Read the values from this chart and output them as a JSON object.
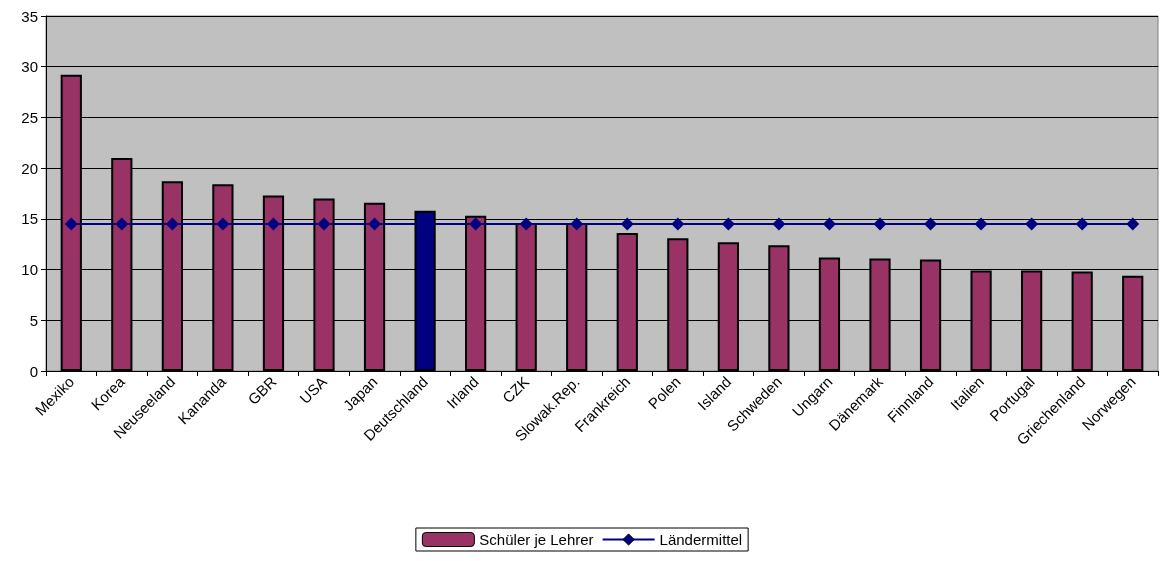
{
  "chart_data": {
    "type": "bar",
    "categories": [
      "Mexiko",
      "Korea",
      "Neuseeland",
      "Kananda",
      "GBR",
      "USA",
      "Japan",
      "Deutschland",
      "Irland",
      "CZK",
      "Slowak.Rep.",
      "Frankreich",
      "Polen",
      "Island",
      "Schweden",
      "Ungarn",
      "Dänemark",
      "Finnland",
      "Italien",
      "Portugal",
      "Griechenland",
      "Norwegen"
    ],
    "series": [
      {
        "name": "Schüler je Lehrer",
        "color": "#993366",
        "colors": [
          "#993366",
          "#993366",
          "#993366",
          "#993366",
          "#993366",
          "#993366",
          "#993366",
          "#000080",
          "#993366",
          "#993366",
          "#993366",
          "#993366",
          "#993366",
          "#993366",
          "#993366",
          "#993366",
          "#993366",
          "#993366",
          "#993366",
          "#993366",
          "#993366",
          "#993366"
        ],
        "values": [
          29.2,
          21.0,
          18.7,
          18.4,
          17.3,
          17.0,
          16.6,
          15.8,
          15.3,
          14.6,
          14.6,
          13.6,
          13.1,
          12.7,
          12.4,
          11.2,
          11.1,
          11.0,
          9.9,
          9.9,
          9.8,
          9.4
        ]
      },
      {
        "name": "Ländermittel",
        "type": "line",
        "color": "#000080",
        "marker": "diamond",
        "values": [
          14.5,
          14.5,
          14.5,
          14.5,
          14.5,
          14.5,
          14.5,
          14.5,
          14.5,
          14.5,
          14.5,
          14.5,
          14.5,
          14.5,
          14.5,
          14.5,
          14.5,
          14.5,
          14.5,
          14.5,
          14.5,
          14.5
        ]
      }
    ],
    "ylim": [
      0,
      35
    ],
    "yticks": [
      0,
      5,
      10,
      15,
      20,
      25,
      30,
      35
    ],
    "grid": "y",
    "legend": "bottom"
  }
}
